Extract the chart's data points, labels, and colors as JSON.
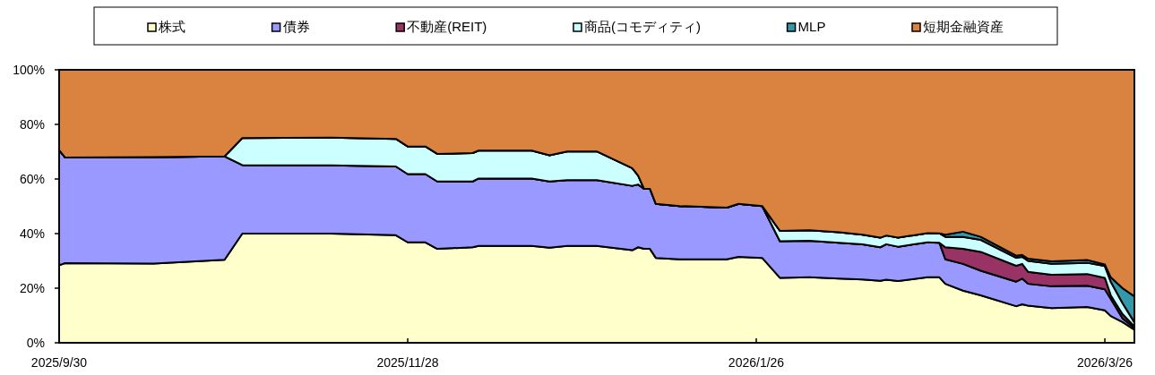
{
  "chart_data": {
    "type": "area",
    "stacked": true,
    "legend": "top",
    "grid": false,
    "x": [
      "2025-09-30",
      "2025-10-01",
      "2025-10-16",
      "2025-10-28",
      "2025-10-31",
      "2025-11-15",
      "2025-11-26",
      "2025-11-28",
      "2025-12-01",
      "2025-12-03",
      "2025-12-09",
      "2025-12-10",
      "2025-12-19",
      "2025-12-22",
      "2025-12-25",
      "2025-12-30",
      "2026-01-05",
      "2026-01-06",
      "2026-01-07",
      "2026-01-08",
      "2026-01-09",
      "2026-01-13",
      "2026-01-21",
      "2026-01-23",
      "2026-01-27",
      "2026-01-30",
      "2026-02-04",
      "2026-02-09",
      "2026-02-13",
      "2026-02-16",
      "2026-02-17",
      "2026-02-19",
      "2026-02-24",
      "2026-02-26",
      "2026-02-27",
      "2026-03-02",
      "2026-03-05",
      "2026-03-11",
      "2026-03-12",
      "2026-03-13",
      "2026-03-17",
      "2026-03-23",
      "2026-03-26",
      "2026-03-27",
      "2026-03-29",
      "2026-03-31"
    ],
    "series": [
      {
        "name": "株式",
        "color": "#ffffcc",
        "values": [
          28.4,
          29.2,
          29.0,
          30.4,
          40.0,
          40.0,
          39.4,
          36.8,
          36.8,
          34.4,
          35.0,
          35.5,
          35.5,
          34.8,
          35.5,
          35.5,
          33.9,
          35.0,
          34.4,
          34.4,
          31.1,
          30.6,
          30.6,
          31.5,
          31.1,
          23.8,
          24.0,
          23.5,
          23.2,
          22.7,
          23.1,
          22.6,
          24.0,
          24.0,
          21.6,
          19.1,
          17.4,
          13.4,
          14.1,
          13.6,
          12.7,
          13.1,
          11.9,
          9.8,
          7.6,
          4.8
        ]
      },
      {
        "name": "債券",
        "color": "#9999ff",
        "values": [
          42.2,
          38.7,
          39.0,
          37.9,
          25.1,
          25.0,
          25.2,
          25.0,
          25.0,
          24.7,
          24.1,
          24.7,
          24.7,
          24.3,
          24.1,
          24.1,
          23.6,
          23.0,
          22.0,
          22.0,
          19.8,
          19.5,
          18.9,
          19.4,
          19.0,
          13.4,
          13.4,
          13.1,
          12.9,
          12.3,
          13.0,
          12.6,
          12.8,
          12.6,
          9.0,
          9.8,
          9.0,
          9.0,
          9.4,
          8.0,
          8.0,
          7.8,
          7.7,
          6.3,
          1.3,
          0.7
        ]
      },
      {
        "name": "不動産(REIT)",
        "color": "#993366",
        "values": [
          0,
          0,
          0,
          0,
          0,
          0,
          0,
          0,
          0,
          0,
          0,
          0,
          0,
          0,
          0,
          0,
          0,
          0,
          0,
          0,
          0,
          0,
          0,
          0,
          0,
          0,
          0,
          0,
          0,
          0,
          0,
          0,
          0,
          0,
          4.4,
          5.5,
          6.9,
          5.8,
          5.4,
          4.4,
          4.2,
          4.3,
          4.2,
          1.3,
          1.6,
          0.5
        ]
      },
      {
        "name": "商品(コモディティ)",
        "color": "#ccffff",
        "values": [
          0,
          0,
          0,
          0,
          9.9,
          10.2,
          10.1,
          10.1,
          10.1,
          10.1,
          10.4,
          10.2,
          10.2,
          9.6,
          10.5,
          10.5,
          6.5,
          3.3,
          0,
          0,
          0,
          0,
          0,
          0,
          0,
          3.8,
          3.8,
          3.9,
          3.5,
          3.5,
          3.2,
          3.3,
          3.4,
          3.5,
          3.8,
          4.4,
          4.4,
          2.9,
          2.6,
          4.0,
          4.0,
          4.1,
          4.3,
          5.0,
          4.0,
          1.5
        ]
      },
      {
        "name": "MLP",
        "color": "#3399aa",
        "values": [
          0,
          0,
          0,
          0,
          0,
          0,
          0,
          0,
          0,
          0,
          0,
          0,
          0,
          0,
          0,
          0,
          0,
          0,
          0,
          0,
          0,
          0,
          0,
          0,
          0,
          0,
          0,
          0,
          0,
          0,
          0,
          0,
          0,
          0,
          0.8,
          1.9,
          1.1,
          0.8,
          0.7,
          0.8,
          0.9,
          1.0,
          0.6,
          1.6,
          5.5,
          9.5
        ]
      },
      {
        "name": "短期金融資産",
        "color": "#da8340",
        "values": [
          29.4,
          32.1,
          32.0,
          31.7,
          25.0,
          24.8,
          25.3,
          28.1,
          28.1,
          30.8,
          30.5,
          29.6,
          29.6,
          31.3,
          29.9,
          29.9,
          36.0,
          38.7,
          43.6,
          43.6,
          49.1,
          49.9,
          50.5,
          49.1,
          49.9,
          59.0,
          58.8,
          59.5,
          60.4,
          61.5,
          60.7,
          61.5,
          59.8,
          59.9,
          60.4,
          59.3,
          61.2,
          68.1,
          67.8,
          69.2,
          70.2,
          69.7,
          71.3,
          76.0,
          80.0,
          83.0
        ]
      }
    ],
    "xlim": [
      "2025-09-30",
      "2026-03-31"
    ],
    "xticks": [
      {
        "value": "2025-09-30",
        "label": "2025/9/30"
      },
      {
        "value": "2025-11-28",
        "label": "2025/11/28"
      },
      {
        "value": "2026-01-26",
        "label": "2026/1/26"
      },
      {
        "value": "2026-03-26",
        "label": "2026/3/26"
      }
    ],
    "ylim": [
      0,
      100
    ],
    "yticks": [
      {
        "value": 0,
        "label": "0%"
      },
      {
        "value": 20,
        "label": "20%"
      },
      {
        "value": 40,
        "label": "40%"
      },
      {
        "value": 60,
        "label": "60%"
      },
      {
        "value": 80,
        "label": "80%"
      },
      {
        "value": 100,
        "label": "100%"
      }
    ]
  }
}
